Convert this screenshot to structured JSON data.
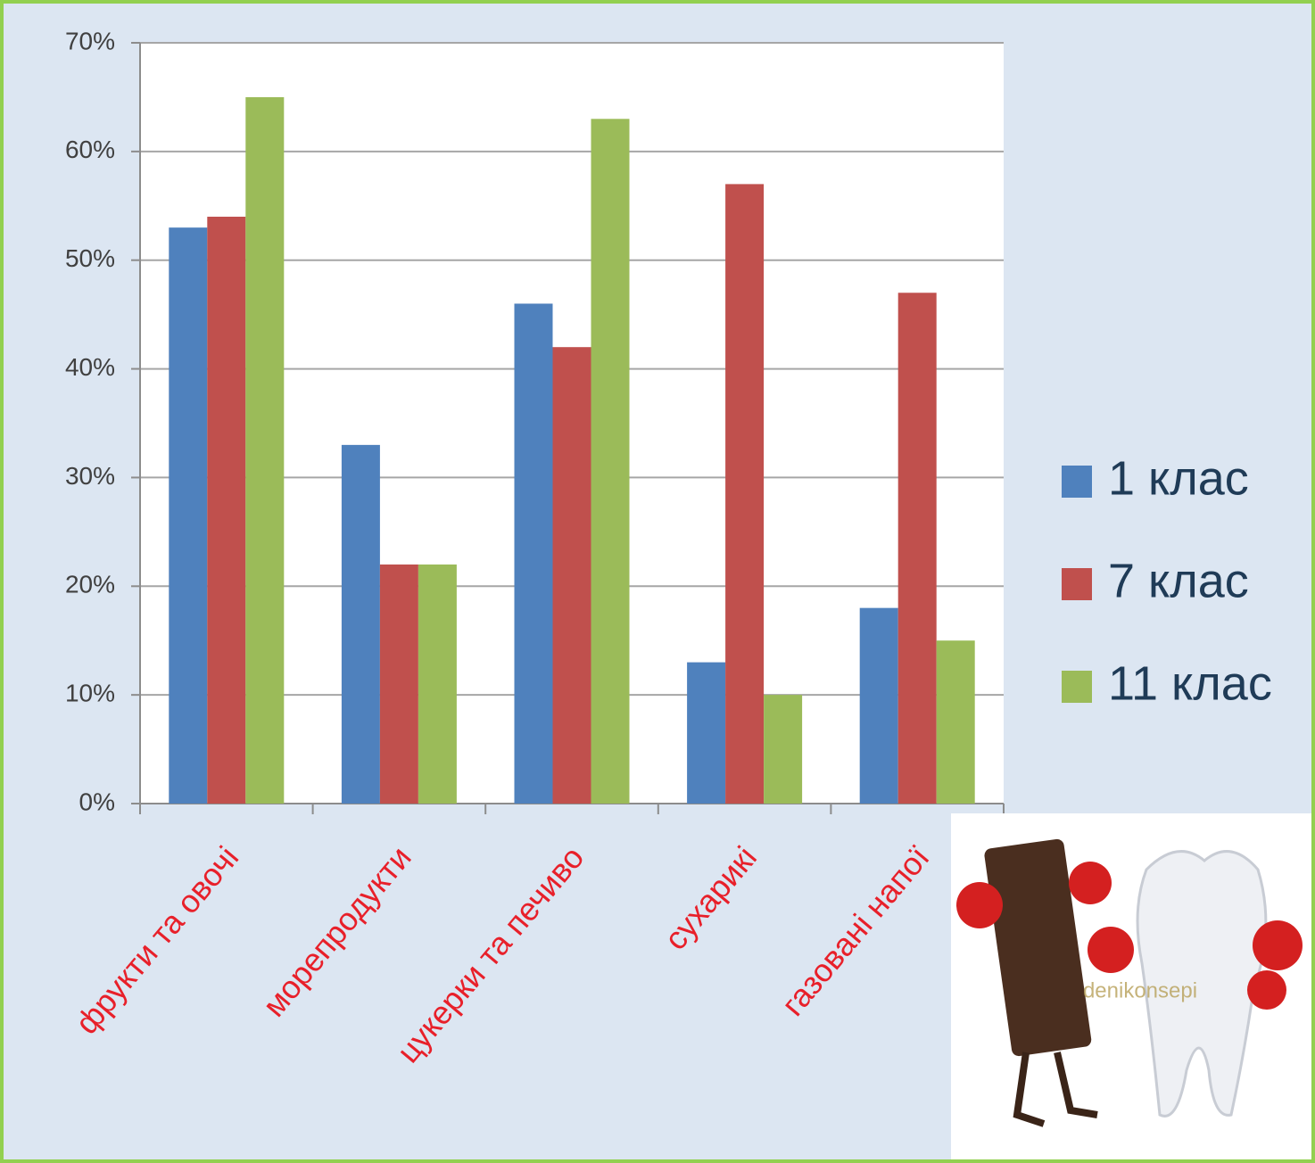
{
  "chart_data": {
    "type": "bar",
    "categories": [
      "фрукти та овочі",
      "морепродукти",
      "цукерки та печиво",
      "сухарикі",
      "газовані напої"
    ],
    "series": [
      {
        "name": "1 клас",
        "color": "#4f81bd",
        "values": [
          53,
          33,
          46,
          13,
          18
        ]
      },
      {
        "name": "7 клас",
        "color": "#c0504d",
        "values": [
          54,
          22,
          42,
          57,
          47
        ]
      },
      {
        "name": "11 клас",
        "color": "#9bbb59",
        "values": [
          65,
          22,
          63,
          10,
          15
        ]
      }
    ],
    "ylim": [
      0,
      70
    ],
    "yticks": [
      {
        "value": 0,
        "label": "0%"
      },
      {
        "value": 10,
        "label": "10%"
      },
      {
        "value": 20,
        "label": "20%"
      },
      {
        "value": 30,
        "label": "30%"
      },
      {
        "value": 40,
        "label": "40%"
      },
      {
        "value": 50,
        "label": "50%"
      },
      {
        "value": 60,
        "label": "60%"
      },
      {
        "value": 70,
        "label": "70%"
      }
    ],
    "grid": true,
    "legend": "right"
  },
  "image_watermark": "denikonsepi"
}
